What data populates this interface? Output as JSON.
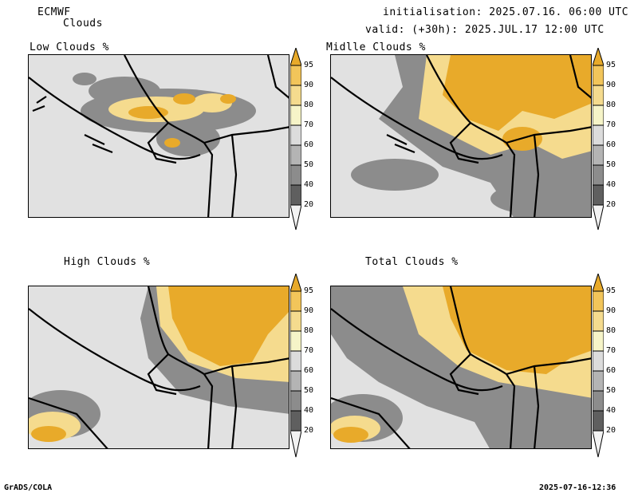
{
  "header": {
    "model": "ECMWF",
    "product": "Clouds",
    "init_line": "initialisation: 2025.07.16. 06:00 UTC",
    "valid_line": "valid: (+30h): 2025.JUL.17 12:00 UTC"
  },
  "panels": {
    "low": "Low Clouds %",
    "mid": "Midlle Clouds %",
    "high": "High Clouds %",
    "total": "Total Clouds %"
  },
  "colorbar": {
    "ticks": [
      "95",
      "90",
      "80",
      "70",
      "60",
      "50",
      "40",
      "20"
    ],
    "colors": [
      "#e8aa2a",
      "#f2c55a",
      "#f5db8e",
      "#f6f4c8",
      "#dcdcdc",
      "#b4b4b4",
      "#8c8c8c",
      "#5f5f5f",
      "#f2f2f2"
    ]
  },
  "footer": {
    "left": "GrADS/COLA",
    "right": "2025-07-16-12:36"
  }
}
